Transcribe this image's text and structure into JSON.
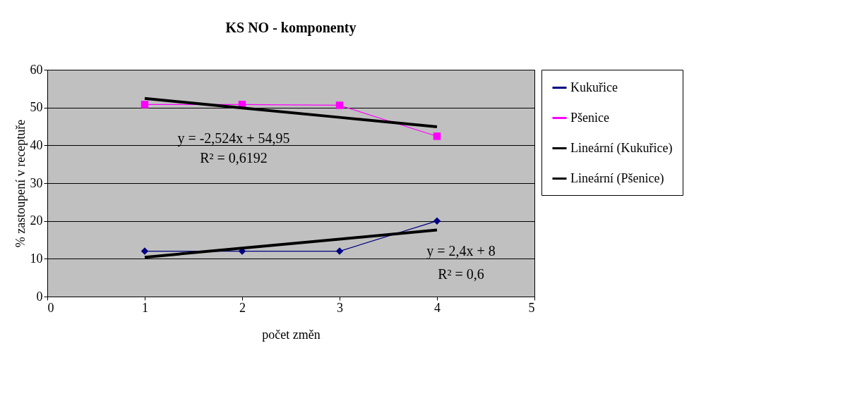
{
  "chart_data": {
    "type": "line",
    "title": "KS NO - komponenty",
    "xlabel": "počet změn",
    "ylabel": "% zastoupení v receptuře",
    "x": [
      1,
      2,
      3,
      4
    ],
    "series": [
      {
        "name": "Kukuřice",
        "color": "#000080",
        "values": [
          12,
          12,
          12,
          20
        ],
        "marker": "diamond"
      },
      {
        "name": "Pšenice",
        "color": "#ff00ff",
        "values": [
          50.8,
          50.8,
          50.6,
          42.4
        ],
        "marker": "square"
      },
      {
        "name": "Lineární (Kukuřice)",
        "color": "#000000",
        "values": [
          10.4,
          12.8,
          15.2,
          17.6
        ],
        "marker": "none"
      },
      {
        "name": "Lineární (Pšenice)",
        "color": "#000000",
        "values": [
          52.4,
          49.9,
          47.4,
          44.9
        ],
        "marker": "none"
      }
    ],
    "annotations": [
      "y = -2,524x + 54,95",
      "R² = 0,6192",
      "y = 2,4x + 8",
      "R² = 0,6"
    ],
    "xlim": [
      0,
      5
    ],
    "xticks": [
      0,
      1,
      2,
      3,
      4,
      5
    ],
    "ylim": [
      0,
      60
    ],
    "yticks": [
      0,
      10,
      20,
      30,
      40,
      50,
      60
    ],
    "grid": "y",
    "legend": "right"
  }
}
